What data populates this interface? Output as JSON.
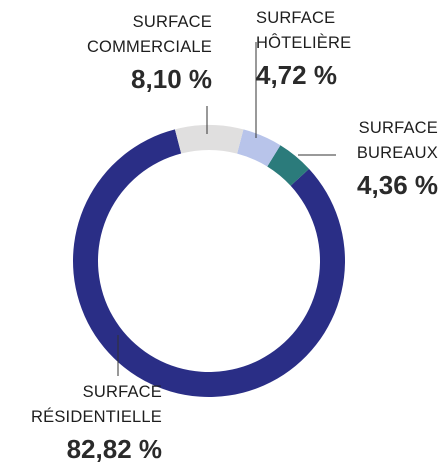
{
  "chart_data": {
    "type": "donut",
    "categories": [
      "SURFACE COMMERCIALE",
      "SURFACE HÔTELIÈRE",
      "SURFACE BUREAUX",
      "SURFACE RÉSIDENTIELLE"
    ],
    "values": [
      8.1,
      4.72,
      4.36,
      82.82
    ],
    "value_labels": [
      "8,10 %",
      "4,72 %",
      "4,36 %",
      "82,82 %"
    ],
    "colors": [
      "#e0dfdf",
      "#b8c4ea",
      "#2b7b7b",
      "#2a2e86"
    ]
  }
}
